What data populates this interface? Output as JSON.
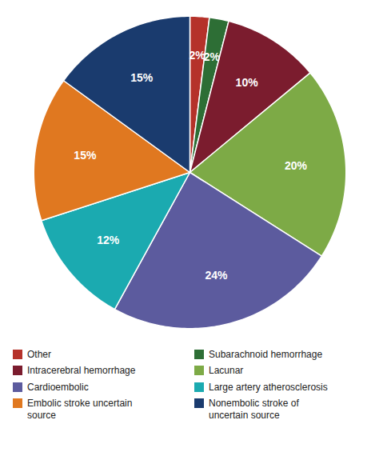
{
  "chart_data": {
    "type": "pie",
    "categories": [
      "Other",
      "Subarachnoid hemorrhage",
      "Intracerebral hemorrhage",
      "Lacunar",
      "Cardioembolic",
      "Large artery atherosclerosis",
      "Embolic stroke uncertain\nsource",
      "Nonembolic stroke of\nuncertain source"
    ],
    "values": [
      2,
      2,
      10,
      20,
      24,
      12,
      15,
      15
    ],
    "value_labels": [
      "2%",
      "2%",
      "10%",
      "20%",
      "24%",
      "12%",
      "15%",
      "15%"
    ],
    "colors": [
      "#b5322a",
      "#2d6e35",
      "#7b1c2e",
      "#7daa46",
      "#5c5b9e",
      "#1baab0",
      "#e07820",
      "#1a3b6e"
    ],
    "data_labels": true,
    "legend": "bottom"
  }
}
